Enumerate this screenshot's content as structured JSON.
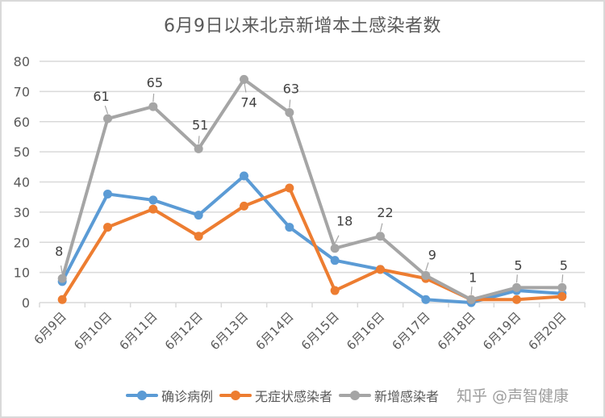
{
  "chart_data": {
    "type": "line",
    "title": "6月9日以来北京新增本土感染者数",
    "xlabel": "",
    "ylabel": "",
    "ylim": [
      0,
      80
    ],
    "yticks": [
      0,
      10,
      20,
      30,
      40,
      50,
      60,
      70,
      80
    ],
    "grid": true,
    "legend_position": "bottom",
    "categories": [
      "6月9日",
      "6月10日",
      "6月11日",
      "6月12日",
      "6月13日",
      "6月14日",
      "6月15日",
      "6月16日",
      "6月17日",
      "6月18日",
      "6月19日",
      "6月20日"
    ],
    "series": [
      {
        "name": "确诊病例",
        "color": "#5b9bd5",
        "values": [
          7,
          36,
          34,
          29,
          42,
          25,
          14,
          11,
          1,
          0,
          4,
          3
        ],
        "data_labels": false
      },
      {
        "name": "无症状感染者",
        "color": "#ed7d31",
        "values": [
          1,
          25,
          31,
          22,
          32,
          38,
          4,
          11,
          8,
          1,
          1,
          2
        ],
        "data_labels": false
      },
      {
        "name": "新增感染者",
        "color": "#a5a5a5",
        "values": [
          8,
          61,
          65,
          51,
          74,
          63,
          18,
          22,
          9,
          1,
          5,
          5
        ],
        "data_labels": true
      }
    ]
  },
  "watermark": "知乎 @声智健康"
}
